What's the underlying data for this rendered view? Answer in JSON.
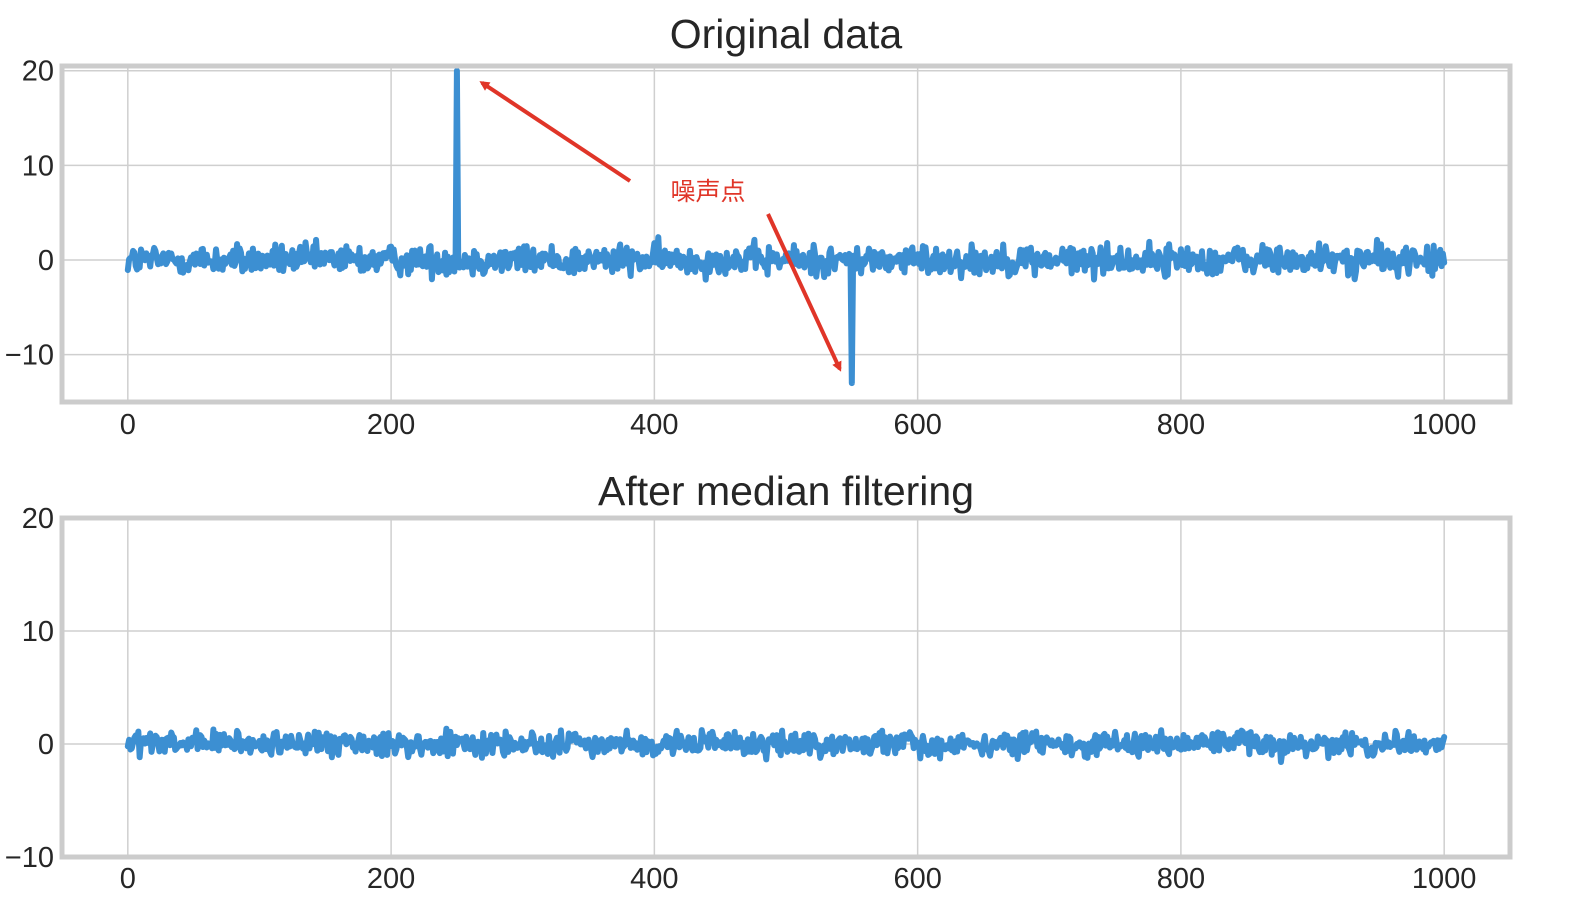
{
  "colors": {
    "line": "#3c8fd2",
    "grid": "#cfcfcf",
    "frame": "#cccccc",
    "annotation": "#e03528"
  },
  "chart_data": [
    {
      "type": "line",
      "title": "Original data",
      "xlim": [
        -50,
        1050
      ],
      "ylim": [
        -15,
        20.5
      ],
      "xticks": [
        0,
        200,
        400,
        600,
        800,
        1000
      ],
      "yticks": [
        -10,
        0,
        10,
        20
      ],
      "xtick_labels": [
        "0",
        "200",
        "400",
        "600",
        "800",
        "1000"
      ],
      "ytick_labels": [
        "−10",
        "0",
        "10",
        "20"
      ],
      "grid": true,
      "series": [
        {
          "n_points": 1001,
          "baseline_mean": 0,
          "baseline_amplitude": 1.5,
          "spikes": [
            {
              "x": 250,
              "y": 20
            },
            {
              "x": 550,
              "y": -13
            }
          ]
        }
      ],
      "annotations": [
        {
          "text": "噪声点",
          "points_to": [
            {
              "x": 250,
              "y": 20
            },
            {
              "x": 550,
              "y": -13
            }
          ]
        }
      ]
    },
    {
      "type": "line",
      "title": "After median filtering",
      "xlim": [
        -50,
        1050
      ],
      "ylim": [
        -10,
        20
      ],
      "xticks": [
        0,
        200,
        400,
        600,
        800,
        1000
      ],
      "yticks": [
        -10,
        0,
        10,
        20
      ],
      "xtick_labels": [
        "0",
        "200",
        "400",
        "600",
        "800",
        "1000"
      ],
      "ytick_labels": [
        "−10",
        "0",
        "10",
        "20"
      ],
      "grid": true,
      "series": [
        {
          "n_points": 1001,
          "baseline_mean": 0,
          "baseline_amplitude": 1.0,
          "spikes": []
        }
      ]
    }
  ]
}
